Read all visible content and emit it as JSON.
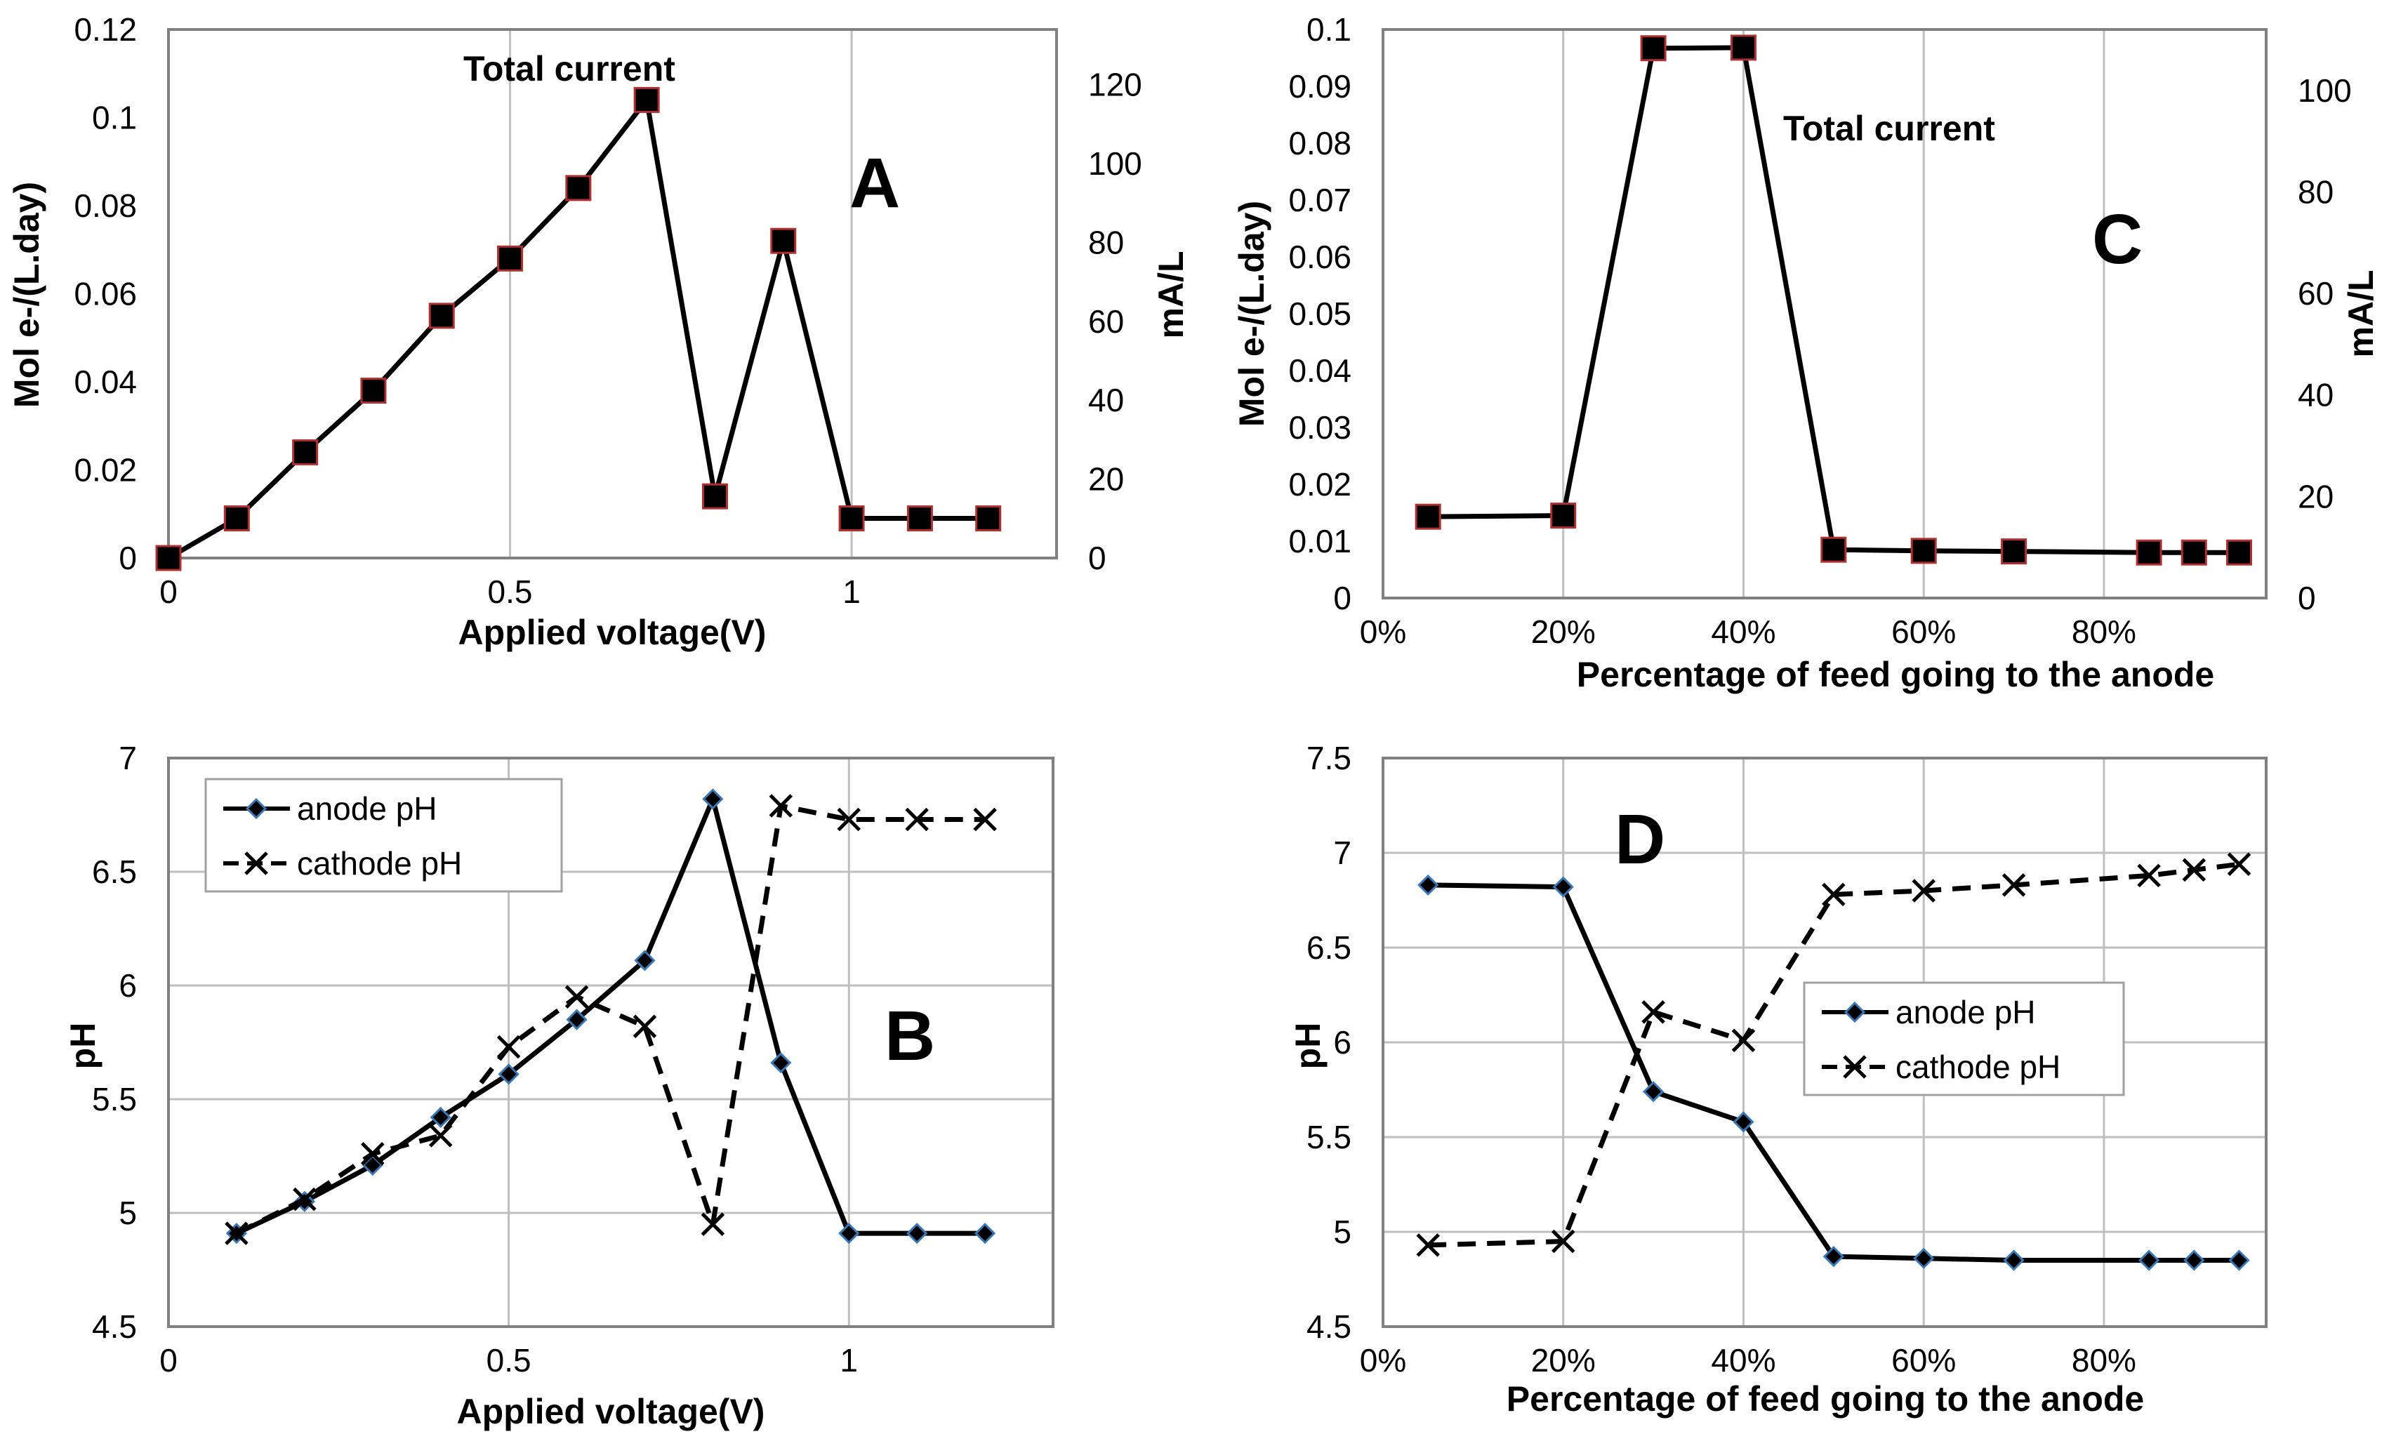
{
  "chart_data": [
    {
      "panel": "A",
      "type": "line",
      "annotation": "Total current",
      "xlabel": "Applied voltage(V)",
      "ylabel": "Mol e-/(L.day)",
      "y2label": "mA/L",
      "xlim": [
        0,
        1.3
      ],
      "ylim": [
        0,
        0.12
      ],
      "y2lim": [
        0,
        134
      ],
      "xticks": [
        0,
        0.5,
        1
      ],
      "xtick_labels": [
        "0",
        "0.5",
        "1"
      ],
      "yticks": [
        0,
        0.02,
        0.04,
        0.06,
        0.08,
        0.1,
        0.12
      ],
      "ytick_labels": [
        "0",
        "0.02",
        "0.04",
        "0.06",
        "0.08",
        "0.1",
        "0.12"
      ],
      "y2ticks": [
        0,
        20,
        40,
        60,
        80,
        100,
        120
      ],
      "y2tick_labels": [
        "0",
        "20",
        "40",
        "60",
        "80",
        "100",
        "120"
      ],
      "grid": "vertical",
      "series": [
        {
          "name": "Total current",
          "marker": "square",
          "x": [
            0,
            0.1,
            0.2,
            0.3,
            0.4,
            0.5,
            0.6,
            0.7,
            0.8,
            0.9,
            1.0,
            1.1,
            1.2
          ],
          "y": [
            0,
            0.009,
            0.024,
            0.038,
            0.055,
            0.068,
            0.084,
            0.104,
            0.014,
            0.072,
            0.009,
            0.009,
            0.009
          ]
        }
      ]
    },
    {
      "panel": "C",
      "type": "line",
      "annotation": "Total current",
      "xlabel": "Percentage of feed going to the anode",
      "ylabel": "Mol e-/(L.day)",
      "y2label": "mA/L",
      "xlim": [
        0,
        0.98
      ],
      "ylim": [
        0,
        0.1
      ],
      "y2lim": [
        0,
        112
      ],
      "xticks": [
        0,
        0.2,
        0.4,
        0.6,
        0.8
      ],
      "xtick_labels": [
        "0%",
        "20%",
        "40%",
        "60%",
        "80%"
      ],
      "yticks": [
        0,
        0.01,
        0.02,
        0.03,
        0.04,
        0.05,
        0.06,
        0.07,
        0.08,
        0.09,
        0.1
      ],
      "ytick_labels": [
        "0",
        "0.01",
        "0.02",
        "0.03",
        "0.04",
        "0.05",
        "0.06",
        "0.07",
        "0.08",
        "0.09",
        "0.1"
      ],
      "y2ticks": [
        0,
        20,
        40,
        60,
        80,
        100
      ],
      "y2tick_labels": [
        "0",
        "20",
        "40",
        "60",
        "80",
        "100"
      ],
      "grid": "vertical",
      "series": [
        {
          "name": "Total current",
          "marker": "square",
          "x": [
            0.05,
            0.2,
            0.3,
            0.4,
            0.5,
            0.6,
            0.7,
            0.85,
            0.9,
            0.95
          ],
          "y": [
            0.0143,
            0.0145,
            0.0967,
            0.0968,
            0.0085,
            0.0083,
            0.0082,
            0.008,
            0.008,
            0.008
          ]
        }
      ]
    },
    {
      "panel": "B",
      "type": "line",
      "xlabel": "Applied voltage(V)",
      "ylabel": "pH",
      "xlim": [
        0,
        1.3
      ],
      "ylim": [
        4.5,
        7
      ],
      "xticks": [
        0,
        0.5,
        1
      ],
      "xtick_labels": [
        "0",
        "0.5",
        "1"
      ],
      "yticks": [
        4.5,
        5,
        5.5,
        6,
        6.5,
        7
      ],
      "ytick_labels": [
        "4.5",
        "5",
        "5.5",
        "6",
        "6.5",
        "7"
      ],
      "grid": "both",
      "legend": "top-left",
      "series": [
        {
          "name": "anode pH",
          "marker": "diamond",
          "style": "solid",
          "x": [
            0.1,
            0.2,
            0.3,
            0.4,
            0.5,
            0.6,
            0.7,
            0.8,
            0.9,
            1.0,
            1.1,
            1.2
          ],
          "y": [
            4.91,
            5.05,
            5.21,
            5.42,
            5.61,
            5.85,
            6.11,
            6.82,
            5.66,
            4.91,
            4.91,
            4.91
          ]
        },
        {
          "name": "cathode pH",
          "marker": "x",
          "style": "dashed",
          "x": [
            0.1,
            0.2,
            0.3,
            0.4,
            0.5,
            0.6,
            0.7,
            0.8,
            0.9,
            1.0,
            1.1,
            1.2
          ],
          "y": [
            4.91,
            5.06,
            5.26,
            5.34,
            5.73,
            5.95,
            5.82,
            4.95,
            6.79,
            6.73,
            6.73,
            6.73
          ]
        }
      ]
    },
    {
      "panel": "D",
      "type": "line",
      "xlabel": "Percentage of feed going to the anode",
      "ylabel": "pH",
      "xlim": [
        0,
        0.98
      ],
      "ylim": [
        4.5,
        7.5
      ],
      "xticks": [
        0,
        0.2,
        0.4,
        0.6,
        0.8
      ],
      "xtick_labels": [
        "0%",
        "20%",
        "40%",
        "60%",
        "80%"
      ],
      "yticks": [
        4.5,
        5,
        5.5,
        6,
        6.5,
        7,
        7.5
      ],
      "ytick_labels": [
        "4.5",
        "5",
        "5.5",
        "6",
        "6.5",
        "7",
        "7.5"
      ],
      "grid": "both",
      "legend": "center-right",
      "series": [
        {
          "name": "anode pH",
          "marker": "diamond",
          "style": "solid",
          "x": [
            0.05,
            0.2,
            0.3,
            0.4,
            0.5,
            0.6,
            0.7,
            0.85,
            0.9,
            0.95
          ],
          "y": [
            6.83,
            6.82,
            5.74,
            5.58,
            4.87,
            4.86,
            4.85,
            4.85,
            4.85,
            4.85
          ]
        },
        {
          "name": "cathode pH",
          "marker": "x",
          "style": "dashed",
          "x": [
            0.05,
            0.2,
            0.3,
            0.4,
            0.5,
            0.6,
            0.7,
            0.85,
            0.9,
            0.95
          ],
          "y": [
            4.93,
            4.95,
            6.16,
            6.01,
            6.78,
            6.8,
            6.83,
            6.88,
            6.91,
            6.94
          ]
        }
      ]
    }
  ]
}
